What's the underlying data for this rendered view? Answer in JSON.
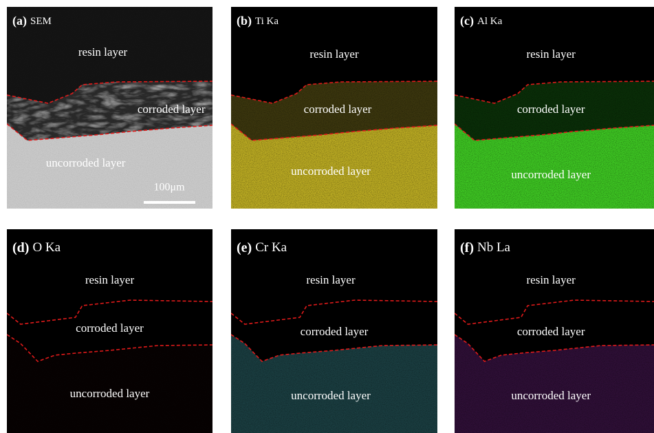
{
  "panels": [
    {
      "label": "(a)",
      "title": "SEM",
      "layers": [
        "resin layer",
        "corroded layer",
        "uncorroded layer"
      ],
      "scale_bar": "100μm"
    },
    {
      "label": "(b)",
      "title": "Ti Ka",
      "layers": [
        "resin layer",
        "corroded layer",
        "uncorroded layer"
      ]
    },
    {
      "label": "(c)",
      "title": "Al Ka",
      "layers": [
        "resin layer",
        "corroded layer",
        "uncorroded layer"
      ]
    },
    {
      "label": "(d)",
      "title": "O Ka",
      "layers": [
        "resin layer",
        "corroded layer",
        "uncorroded layer"
      ]
    },
    {
      "label": "(e)",
      "title": "Cr Ka",
      "layers": [
        "resin layer",
        "corroded layer",
        "uncorroded layer"
      ]
    },
    {
      "label": "(f)",
      "title": "Nb La",
      "layers": [
        "resin layer",
        "corroded layer",
        "uncorroded layer"
      ]
    }
  ]
}
